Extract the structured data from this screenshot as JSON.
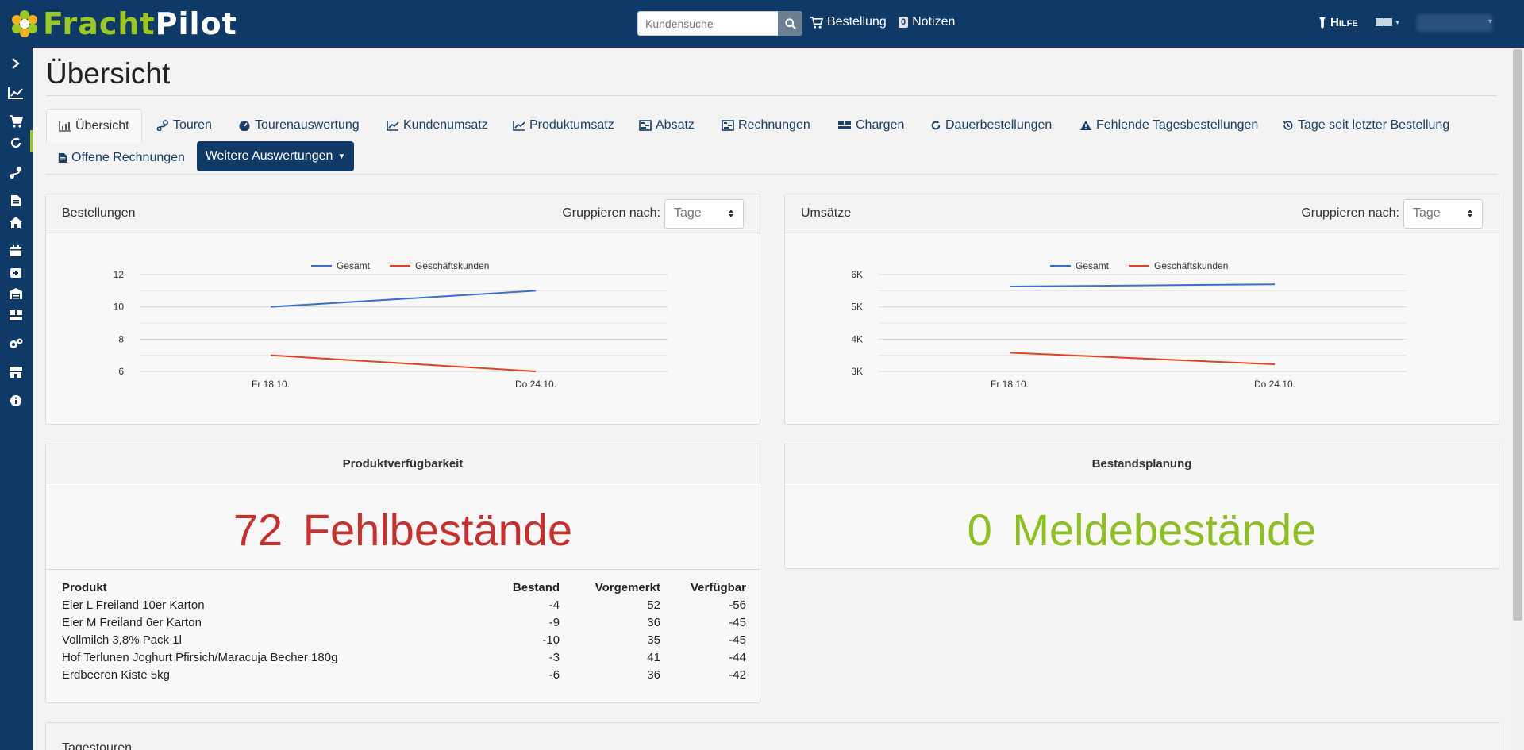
{
  "header": {
    "logo_part1": "Fracht",
    "logo_part2": "Pilot",
    "search_placeholder": "Kundensuche",
    "order_label": "Bestellung",
    "notes_label": "Notizen",
    "notes_count": "0",
    "help_label": "Hilfe"
  },
  "page": {
    "title": "Übersicht"
  },
  "tabs": {
    "overview": "Übersicht",
    "tours": "Touren",
    "tour_analysis": "Tourenauswertung",
    "customer_revenue": "Kundenumsatz",
    "product_revenue": "Produktumsatz",
    "sales": "Absatz",
    "invoices": "Rechnungen",
    "batches": "Chargen",
    "standing_orders": "Dauerbestellungen",
    "missing_daily_orders": "Fehlende Tagesbestellungen",
    "days_since_order": "Tage seit letzter Bestellung",
    "open_invoices": "Offene Rechnungen",
    "more_analyses": "Weitere Auswertungen"
  },
  "orders_card": {
    "title": "Bestellungen",
    "group_label": "Gruppieren nach:",
    "group_value": "Tage"
  },
  "revenue_card": {
    "title": "Umsätze",
    "group_label": "Gruppieren nach:",
    "group_value": "Tage"
  },
  "chart_data": [
    {
      "type": "line",
      "categories": [
        "Fr 18.10.",
        "Do 24.10."
      ],
      "series": [
        {
          "name": "Gesamt",
          "values": [
            10,
            11
          ],
          "color": "#3c6fd1"
        },
        {
          "name": "Geschäftskunden",
          "values": [
            7,
            6
          ],
          "color": "#e0421e"
        }
      ],
      "yticks": [
        "12",
        "10",
        "8",
        "6"
      ],
      "ylim": [
        6,
        12
      ],
      "grid": true,
      "legend": "top-center"
    },
    {
      "type": "line",
      "categories": [
        "Fr 18.10.",
        "Do 24.10."
      ],
      "series": [
        {
          "name": "Gesamt",
          "values": [
            5630,
            5700
          ],
          "color": "#3c6fd1"
        },
        {
          "name": "Geschäftskunden",
          "values": [
            3580,
            3220
          ],
          "color": "#e0421e"
        }
      ],
      "yticks": [
        "6K",
        "5K",
        "4K",
        "3K"
      ],
      "ylim": [
        3000,
        6000
      ],
      "grid": true,
      "legend": "top-center"
    }
  ],
  "availability": {
    "title": "Produktverfügbarkeit",
    "count": "72",
    "label": "Fehlbestände",
    "color": "#c9302c",
    "columns": [
      "Produkt",
      "Bestand",
      "Vorgemerkt",
      "Verfügbar"
    ],
    "rows": [
      [
        "Eier L Freiland 10er Karton",
        "-4",
        "52",
        "-56"
      ],
      [
        "Eier M Freiland 6er Karton",
        "-9",
        "36",
        "-45"
      ],
      [
        "Vollmilch 3,8% Pack 1l",
        "-10",
        "35",
        "-45"
      ],
      [
        "Hof Terlunen Joghurt Pfirsich/Maracuja Becher 180g",
        "-3",
        "41",
        "-44"
      ],
      [
        "Erdbeeren Kiste 5kg",
        "-6",
        "36",
        "-42"
      ]
    ]
  },
  "stock_planning": {
    "title": "Bestandsplanung",
    "count": "0",
    "label": "Meldebestände",
    "color": "#8cbf1f"
  },
  "daily_tours": {
    "title": "Tagestouren"
  }
}
